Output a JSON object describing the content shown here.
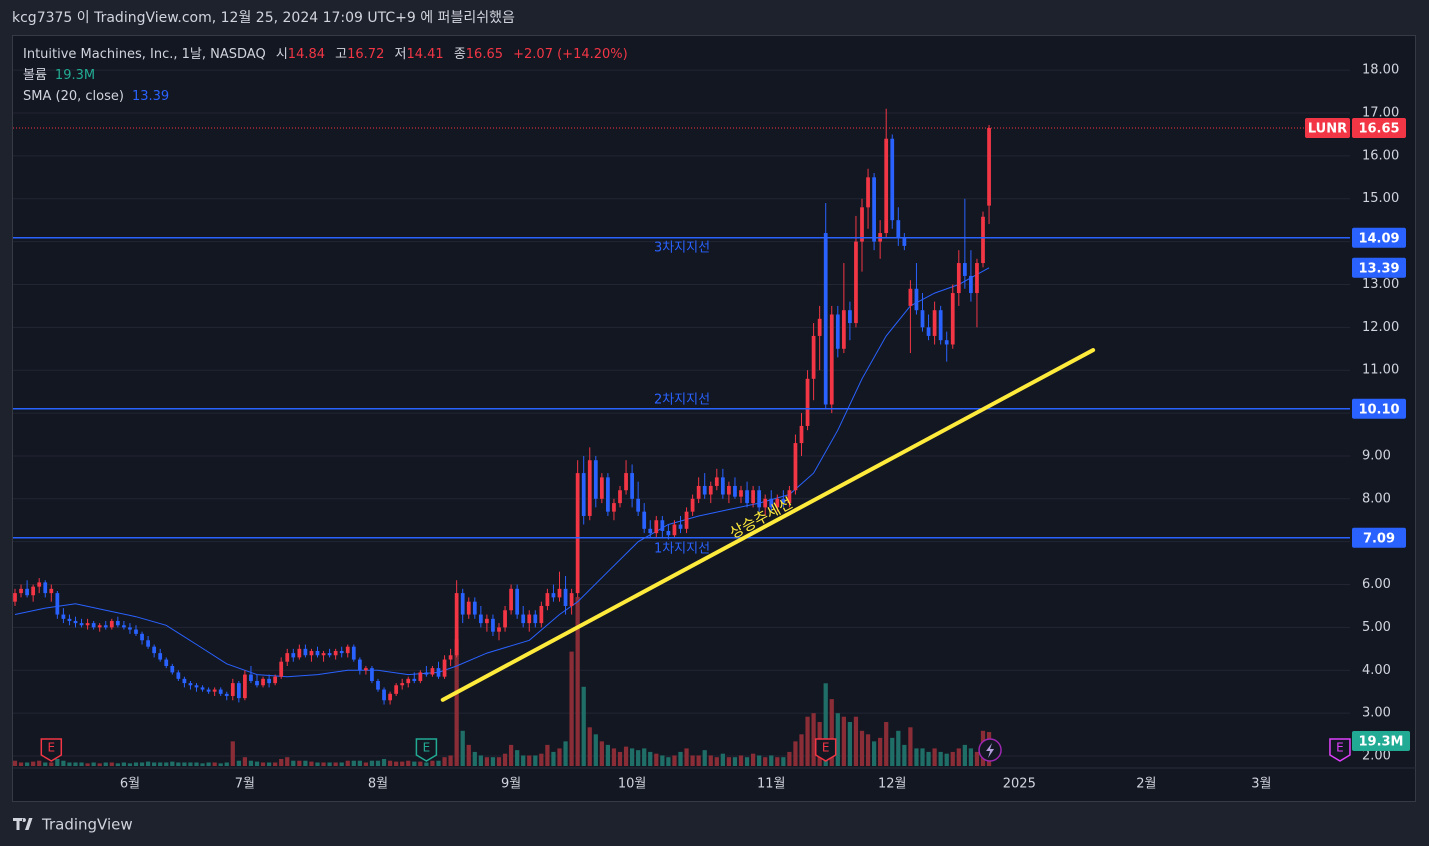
{
  "header": "kcg7375 이 TradingView.com, 12월 25, 2024 17:09 UTC+9 에 퍼블리쉬했음",
  "footer": "TradingView",
  "chart_data": {
    "type": "candlestick",
    "title": "Intuitive Machines, Inc., 1날, NASDAQ",
    "symbol": "LUNR",
    "ohlc_labels": [
      "시",
      "고",
      "저",
      "종"
    ],
    "change_label": "+2.07 (+14.20%)",
    "volume_name": "볼륨",
    "volume_label": "19.3M",
    "sma_name": "SMA (20, close)",
    "colors": {
      "up": "#f23645",
      "down": "#2962ff",
      "volume_up": "#8a2d36",
      "volume_down": "#1f6f68",
      "sma": "#2962ff",
      "level": "#2962ff",
      "volume_tag": "#22ab94"
    },
    "grid": true,
    "xlim": [
      -0.33,
      220.66
    ],
    "xticks": [
      {
        "value": 19,
        "label": "6월"
      },
      {
        "value": 38,
        "label": "7월"
      },
      {
        "value": 60,
        "label": "8월"
      },
      {
        "value": 82,
        "label": "9월"
      },
      {
        "value": 102,
        "label": "10월"
      },
      {
        "value": 125,
        "label": "11월"
      },
      {
        "value": 145,
        "label": "12월"
      },
      {
        "value": 166,
        "label": "2025"
      },
      {
        "value": 187,
        "label": "2월"
      },
      {
        "value": 206,
        "label": "3월"
      }
    ],
    "ylim": [
      1.72,
      18.82
    ],
    "yticks": [
      {
        "value": 2,
        "label": "2.00"
      },
      {
        "value": 3,
        "label": "3.00"
      },
      {
        "value": 4,
        "label": "4.00"
      },
      {
        "value": 5,
        "label": "5.00"
      },
      {
        "value": 6,
        "label": "6.00"
      },
      {
        "value": 7,
        "label": "7.00"
      },
      {
        "value": 8,
        "label": "8.00"
      },
      {
        "value": 9,
        "label": "9.00"
      },
      {
        "value": 10,
        "label": "10.00"
      },
      {
        "value": 11,
        "label": "11.00"
      },
      {
        "value": 12,
        "label": "12.00"
      },
      {
        "value": 13,
        "label": "13.00"
      },
      {
        "value": 14,
        "label": "14.00"
      },
      {
        "value": 15,
        "label": "15.00"
      },
      {
        "value": 16,
        "label": "16.00"
      },
      {
        "value": 17,
        "label": "17.00"
      },
      {
        "value": 18,
        "label": "18.00"
      }
    ],
    "vlim": [
      0,
      100
    ],
    "ohlc": [
      [
        5.6,
        5.9,
        5.5,
        5.8
      ],
      [
        5.8,
        6.0,
        5.7,
        5.9
      ],
      [
        5.9,
        6.1,
        5.7,
        5.75
      ],
      [
        5.75,
        6.0,
        5.6,
        5.95
      ],
      [
        5.95,
        6.15,
        5.8,
        6.05
      ],
      [
        6.05,
        6.1,
        5.7,
        5.8
      ],
      [
        5.8,
        6.0,
        5.6,
        5.9
      ],
      [
        5.8,
        5.85,
        5.2,
        5.3
      ],
      [
        5.3,
        5.45,
        5.1,
        5.2
      ],
      [
        5.2,
        5.3,
        5.05,
        5.15
      ],
      [
        5.15,
        5.25,
        5.0,
        5.1
      ],
      [
        5.1,
        5.2,
        5.0,
        5.05
      ],
      [
        5.05,
        5.2,
        4.95,
        5.1
      ],
      [
        5.1,
        5.15,
        4.95,
        5.0
      ],
      [
        5.0,
        5.1,
        4.9,
        5.05
      ],
      [
        5.05,
        5.15,
        4.95,
        5.0
      ],
      [
        5.0,
        5.2,
        4.95,
        5.15
      ],
      [
        5.15,
        5.25,
        5.0,
        5.05
      ],
      [
        5.05,
        5.15,
        4.95,
        5.0
      ],
      [
        5.0,
        5.1,
        4.85,
        4.95
      ],
      [
        4.95,
        5.05,
        4.8,
        4.85
      ],
      [
        4.85,
        4.9,
        4.6,
        4.7
      ],
      [
        4.7,
        4.8,
        4.5,
        4.55
      ],
      [
        4.55,
        4.6,
        4.3,
        4.4
      ],
      [
        4.4,
        4.5,
        4.2,
        4.25
      ],
      [
        4.25,
        4.3,
        4.05,
        4.1
      ],
      [
        4.1,
        4.15,
        3.9,
        3.95
      ],
      [
        3.95,
        4.0,
        3.75,
        3.8
      ],
      [
        3.8,
        3.85,
        3.6,
        3.7
      ],
      [
        3.7,
        3.75,
        3.55,
        3.65
      ],
      [
        3.65,
        3.7,
        3.5,
        3.6
      ],
      [
        3.6,
        3.65,
        3.5,
        3.55
      ],
      [
        3.55,
        3.6,
        3.45,
        3.5
      ],
      [
        3.5,
        3.6,
        3.4,
        3.55
      ],
      [
        3.55,
        3.6,
        3.4,
        3.45
      ],
      [
        3.45,
        3.5,
        3.3,
        3.4
      ],
      [
        3.4,
        3.8,
        3.3,
        3.7
      ],
      [
        3.7,
        3.75,
        3.25,
        3.35
      ],
      [
        3.35,
        4.0,
        3.3,
        3.9
      ],
      [
        3.9,
        4.1,
        3.7,
        3.75
      ],
      [
        3.75,
        3.9,
        3.6,
        3.65
      ],
      [
        3.65,
        3.85,
        3.6,
        3.8
      ],
      [
        3.8,
        3.9,
        3.6,
        3.7
      ],
      [
        3.7,
        3.9,
        3.65,
        3.85
      ],
      [
        3.85,
        4.3,
        3.8,
        4.2
      ],
      [
        4.2,
        4.5,
        4.1,
        4.4
      ],
      [
        4.4,
        4.5,
        4.2,
        4.3
      ],
      [
        4.3,
        4.6,
        4.25,
        4.5
      ],
      [
        4.5,
        4.6,
        4.3,
        4.35
      ],
      [
        4.35,
        4.5,
        4.2,
        4.45
      ],
      [
        4.45,
        4.55,
        4.3,
        4.35
      ],
      [
        4.35,
        4.45,
        4.2,
        4.4
      ],
      [
        4.4,
        4.5,
        4.3,
        4.35
      ],
      [
        4.35,
        4.5,
        4.25,
        4.45
      ],
      [
        4.45,
        4.55,
        4.3,
        4.4
      ],
      [
        4.4,
        4.6,
        4.3,
        4.55
      ],
      [
        4.55,
        4.6,
        4.2,
        4.25
      ],
      [
        4.25,
        4.3,
        3.9,
        4.0
      ],
      [
        4.0,
        4.1,
        3.9,
        4.05
      ],
      [
        4.05,
        4.1,
        3.7,
        3.75
      ],
      [
        3.75,
        3.8,
        3.5,
        3.55
      ],
      [
        3.55,
        3.6,
        3.2,
        3.3
      ],
      [
        3.3,
        3.5,
        3.2,
        3.45
      ],
      [
        3.45,
        3.7,
        3.4,
        3.65
      ],
      [
        3.65,
        3.8,
        3.55,
        3.7
      ],
      [
        3.7,
        3.85,
        3.6,
        3.8
      ],
      [
        3.8,
        3.95,
        3.7,
        3.75
      ],
      [
        3.75,
        4.0,
        3.7,
        3.95
      ],
      [
        3.95,
        4.1,
        3.85,
        3.9
      ],
      [
        3.9,
        4.1,
        3.85,
        4.05
      ],
      [
        4.05,
        4.2,
        3.8,
        3.85
      ],
      [
        3.85,
        4.35,
        3.8,
        4.25
      ],
      [
        4.25,
        4.5,
        4.1,
        4.35
      ],
      [
        4.35,
        6.1,
        4.3,
        5.8
      ],
      [
        5.8,
        5.9,
        5.1,
        5.3
      ],
      [
        5.3,
        5.7,
        5.2,
        5.6
      ],
      [
        5.6,
        5.7,
        5.2,
        5.3
      ],
      [
        5.3,
        5.5,
        5.0,
        5.1
      ],
      [
        5.1,
        5.3,
        4.9,
        5.2
      ],
      [
        5.2,
        5.3,
        4.8,
        4.9
      ],
      [
        4.9,
        5.1,
        4.7,
        5.0
      ],
      [
        5.0,
        5.5,
        4.9,
        5.4
      ],
      [
        5.4,
        6.0,
        5.3,
        5.9
      ],
      [
        5.9,
        6.0,
        5.2,
        5.3
      ],
      [
        5.3,
        5.5,
        5.0,
        5.1
      ],
      [
        5.1,
        5.4,
        4.9,
        5.3
      ],
      [
        5.3,
        5.4,
        5.0,
        5.1
      ],
      [
        5.1,
        5.6,
        5.0,
        5.5
      ],
      [
        5.5,
        5.9,
        5.4,
        5.8
      ],
      [
        5.8,
        6.0,
        5.6,
        5.7
      ],
      [
        5.7,
        6.3,
        5.6,
        5.9
      ],
      [
        5.9,
        6.2,
        5.3,
        5.5
      ],
      [
        5.5,
        5.9,
        5.3,
        5.8
      ],
      [
        5.8,
        8.9,
        5.7,
        8.6
      ],
      [
        8.6,
        9.0,
        7.4,
        7.6
      ],
      [
        7.6,
        9.2,
        7.5,
        8.9
      ],
      [
        8.9,
        9.0,
        7.8,
        8.0
      ],
      [
        8.0,
        8.6,
        7.9,
        8.5
      ],
      [
        8.5,
        8.6,
        7.6,
        7.7
      ],
      [
        7.7,
        8.0,
        7.5,
        7.9
      ],
      [
        7.9,
        8.3,
        7.8,
        8.2
      ],
      [
        8.2,
        8.9,
        8.1,
        8.6
      ],
      [
        8.6,
        8.8,
        7.8,
        8.0
      ],
      [
        8.0,
        8.4,
        7.6,
        7.7
      ],
      [
        7.7,
        7.9,
        7.2,
        7.3
      ],
      [
        7.3,
        7.5,
        7.1,
        7.2
      ],
      [
        7.2,
        7.6,
        7.1,
        7.5
      ],
      [
        7.5,
        7.6,
        7.1,
        7.25
      ],
      [
        7.25,
        7.4,
        7.05,
        7.15
      ],
      [
        7.15,
        7.5,
        7.1,
        7.4
      ],
      [
        7.4,
        7.6,
        7.2,
        7.3
      ],
      [
        7.3,
        7.8,
        7.2,
        7.7
      ],
      [
        7.7,
        8.1,
        7.6,
        8.0
      ],
      [
        8.0,
        8.5,
        7.9,
        8.3
      ],
      [
        8.3,
        8.6,
        8.0,
        8.1
      ],
      [
        8.1,
        8.4,
        7.9,
        8.3
      ],
      [
        8.3,
        8.7,
        8.2,
        8.5
      ],
      [
        8.5,
        8.7,
        8.0,
        8.1
      ],
      [
        8.1,
        8.4,
        7.9,
        8.3
      ],
      [
        8.3,
        8.5,
        8.0,
        8.05
      ],
      [
        8.05,
        8.3,
        7.9,
        8.2
      ],
      [
        8.2,
        8.4,
        7.8,
        7.9
      ],
      [
        7.9,
        8.3,
        7.8,
        8.2
      ],
      [
        8.2,
        8.3,
        7.7,
        7.8
      ],
      [
        7.8,
        8.1,
        7.6,
        8.0
      ],
      [
        8.0,
        8.2,
        7.7,
        7.8
      ],
      [
        7.8,
        8.1,
        7.7,
        8.0
      ],
      [
        8.0,
        8.2,
        7.8,
        7.9
      ],
      [
        7.9,
        8.3,
        7.8,
        8.2
      ],
      [
        8.2,
        9.5,
        8.1,
        9.3
      ],
      [
        9.3,
        10.0,
        9.0,
        9.7
      ],
      [
        9.7,
        11.0,
        9.6,
        10.8
      ],
      [
        10.8,
        12.1,
        10.3,
        11.8
      ],
      [
        11.8,
        12.5,
        11.0,
        12.2
      ],
      [
        14.2,
        14.9,
        10.1,
        10.2
      ],
      [
        10.2,
        12.5,
        10.0,
        12.3
      ],
      [
        12.3,
        12.5,
        11.3,
        11.5
      ],
      [
        11.5,
        13.5,
        11.4,
        12.4
      ],
      [
        12.4,
        12.6,
        11.7,
        12.1
      ],
      [
        12.1,
        14.6,
        12.0,
        14.0
      ],
      [
        14.0,
        15.0,
        13.3,
        14.8
      ],
      [
        14.8,
        15.7,
        14.3,
        15.5
      ],
      [
        15.5,
        15.6,
        13.8,
        14.0
      ],
      [
        14.0,
        14.5,
        13.6,
        14.2
      ],
      [
        14.2,
        17.1,
        14.1,
        16.4
      ],
      [
        16.4,
        16.5,
        14.3,
        14.5
      ],
      [
        14.5,
        14.8,
        13.9,
        14.1
      ],
      [
        14.1,
        14.2,
        13.8,
        13.9
      ],
      [
        12.5,
        13.1,
        11.4,
        12.9
      ],
      [
        12.9,
        13.5,
        12.3,
        12.4
      ],
      [
        12.4,
        12.8,
        11.9,
        12.0
      ],
      [
        12.0,
        12.3,
        11.7,
        11.8
      ],
      [
        11.8,
        12.6,
        11.6,
        12.4
      ],
      [
        12.4,
        12.5,
        11.6,
        11.7
      ],
      [
        11.7,
        11.9,
        11.2,
        11.6
      ],
      [
        11.6,
        13.0,
        11.5,
        12.8
      ],
      [
        12.8,
        13.8,
        12.5,
        13.5
      ],
      [
        13.5,
        15.0,
        12.9,
        13.2
      ],
      [
        13.2,
        13.8,
        12.6,
        12.8
      ],
      [
        12.8,
        13.6,
        12.0,
        13.5
      ],
      [
        13.5,
        14.7,
        13.4,
        14.58
      ],
      [
        14.84,
        16.72,
        14.41,
        16.65
      ]
    ],
    "volume": [
      3,
      2,
      2,
      2.5,
      3,
      2,
      2,
      4,
      3,
      2,
      2,
      2,
      1.5,
      2,
      1.5,
      2,
      2,
      1.5,
      2,
      1.5,
      2,
      2,
      2.5,
      2,
      2,
      2,
      2.5,
      2,
      2,
      2,
      2,
      1.5,
      2,
      2,
      1.5,
      2,
      14,
      3,
      5,
      3,
      2.5,
      2,
      2,
      2,
      4,
      5,
      3,
      3,
      3,
      2.5,
      2,
      2,
      2,
      2,
      2,
      3,
      3,
      3,
      2,
      3,
      3,
      4,
      3,
      2.5,
      2.5,
      3,
      2.5,
      2.5,
      2,
      3,
      3,
      5,
      6,
      72,
      20,
      12,
      8,
      6,
      5,
      5,
      5,
      7,
      12,
      9,
      6,
      6,
      6,
      7,
      12,
      8,
      10,
      14,
      65,
      96,
      45,
      22,
      18,
      14,
      12,
      10,
      8,
      11,
      10,
      9,
      10,
      8,
      7,
      6,
      5,
      6,
      8,
      10,
      6,
      6,
      9,
      6,
      5,
      7,
      5,
      5,
      6,
      5,
      7,
      6,
      5,
      6,
      5,
      5,
      8,
      14,
      18,
      28,
      30,
      25,
      47,
      38,
      30,
      28,
      25,
      28,
      20,
      18,
      14,
      16,
      25,
      16,
      20,
      12,
      22,
      10,
      10,
      8,
      10,
      8,
      7,
      8,
      10,
      12,
      10,
      8,
      20,
      19.3
    ],
    "sma": {
      "x": [
        0,
        5,
        10,
        15,
        20,
        25,
        30,
        35,
        40,
        45,
        50,
        55,
        60,
        65,
        70,
        73,
        78,
        85,
        90,
        93,
        98,
        103,
        108,
        113,
        118,
        123,
        128,
        132,
        136,
        140,
        144,
        148,
        152,
        156,
        161
      ],
      "values": [
        5.3,
        5.45,
        5.55,
        5.4,
        5.25,
        5.05,
        4.6,
        4.15,
        3.9,
        3.85,
        3.9,
        4.0,
        4.0,
        3.9,
        3.95,
        4.1,
        4.4,
        4.7,
        5.3,
        5.6,
        6.3,
        7.0,
        7.4,
        7.6,
        7.75,
        7.9,
        8.1,
        8.6,
        9.6,
        10.8,
        11.8,
        12.5,
        12.8,
        13.0,
        13.39
      ]
    },
    "levels": [
      {
        "value": 14.09,
        "label": "14.09",
        "name": "3차지지선"
      },
      {
        "value": 10.1,
        "label": "10.10",
        "name": "2차지지선"
      },
      {
        "value": 7.09,
        "label": "7.09",
        "name": "1차지지선"
      }
    ],
    "trendline": {
      "text": "상승추세선",
      "x": [
        70.7,
        178.2
      ],
      "y": [
        3.31,
        11.47
      ],
      "color": "#ffeb3b"
    },
    "events": [
      {
        "x": 6,
        "label": "E",
        "color": "#f23645"
      },
      {
        "x": 68,
        "label": "E",
        "color": "#22ab94"
      },
      {
        "x": 134,
        "label": "E",
        "color": "#f23645"
      },
      {
        "x": 219,
        "label": "E",
        "color": "#e040fb"
      }
    ]
  }
}
